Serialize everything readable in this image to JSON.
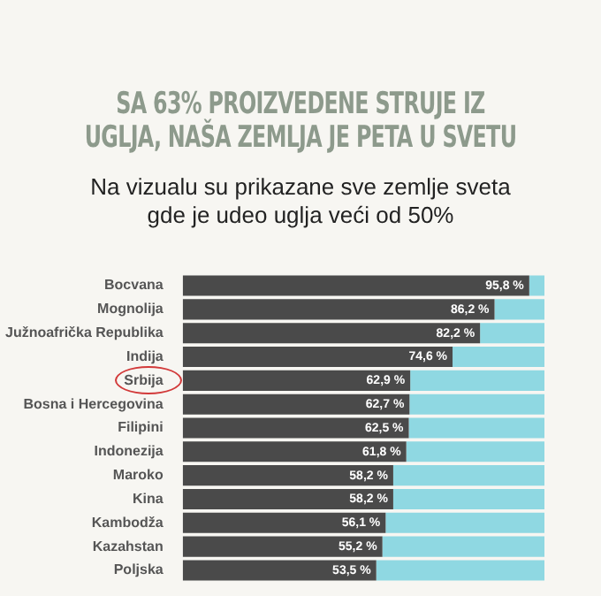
{
  "chart_data": {
    "type": "bar",
    "orientation": "horizontal",
    "stacked": true,
    "xlim": [
      0,
      100
    ],
    "tick_labels": "y",
    "title": "SA 63% PROIZVEDENE STRUJE IZ UGLJA, NAŠA ZEMLJA JE PETA U SVETU",
    "subtitle": "Na vizualu su prikazane sve zemlje sveta gde je udeo uglja veći od 50%",
    "categories": [
      "Bocvana",
      "Mognolija",
      "Južnoafrička Republika",
      "Indija",
      "Srbija",
      "Bosna i Hercegovina",
      "Filipini",
      "Indonezija",
      "Maroko",
      "Kina",
      "Kambodža",
      "Kazahstan",
      "Poljska"
    ],
    "series": [
      {
        "color": "#4a4a4a",
        "values": [
          95.8,
          86.2,
          82.2,
          74.6,
          62.9,
          62.7,
          62.5,
          61.8,
          58.2,
          58.2,
          56.1,
          55.2,
          53.5
        ],
        "value_labels": [
          "95,8 %",
          "86,2 %",
          "82,2 %",
          "74,6 %",
          "62,9 %",
          "62,7 %",
          "62,5 %",
          "61,8 %",
          "58,2 %",
          "58,2 %",
          "56,1 %",
          "55,2 %",
          "53,5 %"
        ]
      },
      {
        "color": "#8fd8e2",
        "values": [
          4.2,
          13.8,
          17.8,
          25.4,
          37.1,
          37.3,
          37.5,
          38.2,
          41.8,
          41.8,
          43.9,
          44.8,
          46.5
        ]
      }
    ],
    "legend": false
  }
}
